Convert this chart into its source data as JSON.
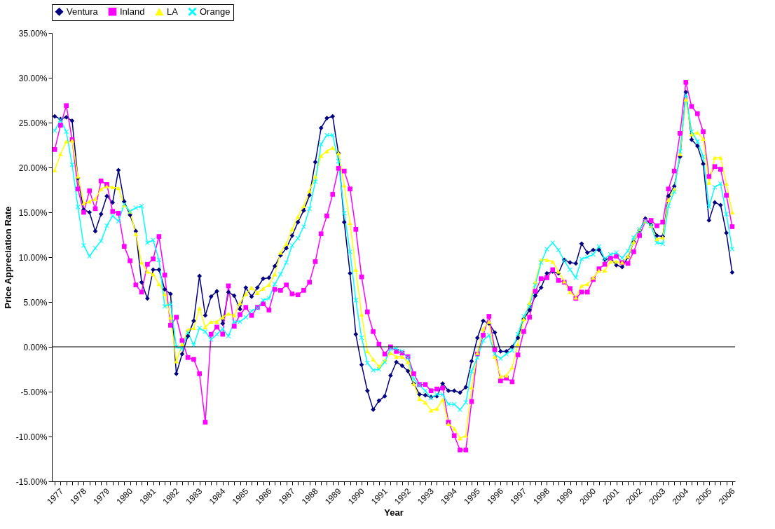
{
  "chart_data": {
    "type": "line",
    "xlabel": "Year",
    "ylabel": "Price Appreciation Rate",
    "legend": "top",
    "categories": [
      "1977",
      null,
      null,
      null,
      "1978",
      null,
      null,
      null,
      "1979",
      null,
      null,
      null,
      "1980",
      null,
      null,
      null,
      "1981",
      null,
      null,
      null,
      "1982",
      null,
      null,
      null,
      "1983",
      null,
      null,
      null,
      "1984",
      null,
      null,
      null,
      "1985",
      null,
      null,
      null,
      "1986",
      null,
      null,
      null,
      "1987",
      null,
      null,
      null,
      "1988",
      null,
      null,
      null,
      "1989",
      null,
      null,
      null,
      "1990",
      null,
      null,
      null,
      "1991",
      null,
      null,
      null,
      "1992",
      null,
      null,
      null,
      "1993",
      null,
      null,
      null,
      "1994",
      null,
      null,
      null,
      "1995",
      null,
      null,
      null,
      "1996",
      null,
      null,
      null,
      "1997",
      null,
      null,
      null,
      "1998",
      null,
      null,
      null,
      "1999",
      null,
      null,
      null,
      "2000",
      null,
      null,
      null,
      "2001",
      null,
      null,
      null,
      "2002",
      null,
      null,
      null,
      "2003",
      null,
      null,
      null,
      "2004",
      null,
      null,
      null,
      "2005",
      null,
      null,
      null,
      "2006",
      null
    ],
    "ylim": [
      -15,
      35
    ],
    "ref_lines": [
      {
        "axis": "y",
        "value": 0,
        "color": "#000000"
      }
    ],
    "yticks": [
      {
        "value": -15,
        "label": "-15.00%"
      },
      {
        "value": -10,
        "label": "-10.00%"
      },
      {
        "value": -5,
        "label": "-5.00%"
      },
      {
        "value": 0,
        "label": "0.00%"
      },
      {
        "value": 5,
        "label": "5.00%"
      },
      {
        "value": 10,
        "label": "10.00%"
      },
      {
        "value": 15,
        "label": "15.00%"
      },
      {
        "value": 20,
        "label": "20.00%"
      },
      {
        "value": 25,
        "label": "25.00%"
      },
      {
        "value": 30,
        "label": "30.00%"
      },
      {
        "value": 35,
        "label": "35.00%"
      }
    ],
    "series": [
      {
        "name": "Ventura",
        "color": "#000080",
        "marker": "diamond",
        "values": [
          25.7,
          25.4,
          25.6,
          25.2,
          18.8,
          15.3,
          15.0,
          12.9,
          14.8,
          16.8,
          16.1,
          19.7,
          16.2,
          14.7,
          12.9,
          7.2,
          5.4,
          8.6,
          8.6,
          6.4,
          5.9,
          -3.0,
          -0.8,
          1.2,
          2.9,
          7.9,
          3.5,
          5.6,
          6.2,
          2.6,
          6.1,
          5.7,
          4.2,
          6.6,
          5.6,
          6.6,
          7.6,
          7.7,
          9.0,
          10.2,
          11.0,
          12.4,
          13.9,
          15.2,
          16.9,
          20.6,
          24.4,
          25.5,
          25.7,
          21.6,
          13.9,
          8.2,
          1.4,
          -2.0,
          -4.9,
          -7.0,
          -6.0,
          -5.5,
          -3.2,
          -1.7,
          -2.1,
          -2.7,
          -4.1,
          -5.3,
          -5.4,
          -5.6,
          -5.5,
          -4.1,
          -4.9,
          -4.9,
          -5.1,
          -4.5,
          -1.6,
          1.0,
          2.9,
          2.6,
          1.6,
          -0.5,
          -0.5,
          0.0,
          1.0,
          3.1,
          4.1,
          5.7,
          6.6,
          8.2,
          8.4,
          8.2,
          9.7,
          9.4,
          9.3,
          11.5,
          10.5,
          10.8,
          10.8,
          9.7,
          9.9,
          9.1,
          8.9,
          10.0,
          11.7,
          13.0,
          14.3,
          13.6,
          12.4,
          12.3,
          16.8,
          17.9,
          21.2,
          28.4,
          23.1,
          22.4,
          20.4,
          14.1,
          16.1,
          15.8,
          12.7,
          8.3
        ]
      },
      {
        "name": "Inland",
        "color": "#ff00ff",
        "marker": "square",
        "values": [
          22.0,
          24.7,
          26.9,
          23.1,
          17.6,
          15.0,
          17.4,
          15.4,
          18.5,
          18.1,
          15.1,
          14.9,
          11.2,
          9.6,
          6.9,
          6.1,
          9.2,
          9.8,
          12.3,
          8.0,
          2.4,
          3.3,
          0.7,
          -1.2,
          -1.4,
          -3.0,
          -8.4,
          1.4,
          2.2,
          1.4,
          6.8,
          2.3,
          3.6,
          4.4,
          3.5,
          4.4,
          4.8,
          4.1,
          6.4,
          6.3,
          6.9,
          5.9,
          5.8,
          6.3,
          7.2,
          9.5,
          12.6,
          14.6,
          17.0,
          19.9,
          19.6,
          17.6,
          13.1,
          7.8,
          3.9,
          1.7,
          0.3,
          -0.8,
          0.0,
          -0.5,
          -0.7,
          -1.1,
          -3.0,
          -4.2,
          -4.2,
          -4.9,
          -4.7,
          -4.6,
          -8.4,
          -9.9,
          -11.5,
          -11.5,
          -6.1,
          -0.8,
          1.3,
          3.4,
          -0.3,
          -3.8,
          -3.5,
          -3.9,
          -0.9,
          1.7,
          3.3,
          6.2,
          7.6,
          7.7,
          8.6,
          7.4,
          7.2,
          6.5,
          5.4,
          6.1,
          6.1,
          7.5,
          8.7,
          9.2,
          9.9,
          10.1,
          9.4,
          9.3,
          10.6,
          12.4,
          14.0,
          14.1,
          13.5,
          13.9,
          17.6,
          19.6,
          23.8,
          29.5,
          26.8,
          26.0,
          24.0,
          19.0,
          20.1,
          19.8,
          16.9,
          13.4
        ]
      },
      {
        "name": "LA",
        "color": "#ffff00",
        "marker": "triangle",
        "values": [
          19.7,
          21.5,
          22.9,
          23.0,
          19.0,
          16.0,
          16.2,
          16.5,
          17.6,
          17.9,
          17.8,
          17.7,
          15.8,
          15.1,
          12.6,
          9.4,
          8.4,
          8.1,
          7.0,
          5.9,
          3.3,
          -1.6,
          0.3,
          1.9,
          2.1,
          4.3,
          2.2,
          2.8,
          2.8,
          3.3,
          3.7,
          3.5,
          4.9,
          5.9,
          6.6,
          6.0,
          6.5,
          6.9,
          8.1,
          10.5,
          11.5,
          13.1,
          14.5,
          15.7,
          17.4,
          19.0,
          21.3,
          21.8,
          22.2,
          21.6,
          18.0,
          13.8,
          8.6,
          3.6,
          -0.5,
          -1.4,
          -2.2,
          -1.5,
          -0.7,
          -1.1,
          -1.1,
          -1.7,
          -4.1,
          -5.8,
          -6.2,
          -7.1,
          -6.9,
          -5.9,
          -8.6,
          -9.1,
          -10.2,
          -9.9,
          -4.5,
          -0.7,
          2.0,
          2.8,
          -1.1,
          -3.3,
          -3.2,
          -2.3,
          0.3,
          3.1,
          4.9,
          7.2,
          9.7,
          9.7,
          9.5,
          8.4,
          7.3,
          6.1,
          5.5,
          6.8,
          7.0,
          7.7,
          8.5,
          8.5,
          9.5,
          9.5,
          9.4,
          10.1,
          11.7,
          13.1,
          14.0,
          13.5,
          12.0,
          12.2,
          16.4,
          17.6,
          21.5,
          27.6,
          23.7,
          23.9,
          23.2,
          18.3,
          21.1,
          21.1,
          18.2,
          15.0
        ]
      },
      {
        "name": "Orange",
        "color": "#00ffff",
        "marker": "cross",
        "values": [
          24.1,
          25.3,
          24.0,
          20.3,
          15.6,
          11.3,
          10.1,
          11.0,
          11.8,
          13.5,
          14.6,
          14.0,
          15.9,
          15.1,
          15.5,
          15.7,
          11.6,
          11.9,
          9.7,
          4.5,
          4.8,
          0.0,
          -0.2,
          1.6,
          0.2,
          2.1,
          1.7,
          0.8,
          1.4,
          2.0,
          1.2,
          2.8,
          2.8,
          3.3,
          4.0,
          4.3,
          5.2,
          5.4,
          7.0,
          8.1,
          9.4,
          11.3,
          12.1,
          13.4,
          15.4,
          18.4,
          22.6,
          23.6,
          23.6,
          20.7,
          14.9,
          10.6,
          5.2,
          1.0,
          -1.8,
          -2.6,
          -2.5,
          -1.7,
          -0.2,
          -0.2,
          -0.5,
          -1.2,
          -3.6,
          -4.3,
          -4.9,
          -5.7,
          -5.3,
          -5.3,
          -6.4,
          -6.4,
          -7.0,
          -6.2,
          -2.7,
          -1.2,
          0.7,
          1.3,
          -0.8,
          -1.3,
          -0.8,
          -0.4,
          1.4,
          3.4,
          4.5,
          6.9,
          9.4,
          10.9,
          11.6,
          10.8,
          9.6,
          8.6,
          7.7,
          9.8,
          10.0,
          10.3,
          11.2,
          9.8,
          10.3,
          10.5,
          9.9,
          10.7,
          12.2,
          13.1,
          14.0,
          13.5,
          11.6,
          11.5,
          15.7,
          17.3,
          21.8,
          28.1,
          24.0,
          22.9,
          21.2,
          15.6,
          17.8,
          18.2,
          14.8,
          10.9
        ]
      }
    ]
  }
}
